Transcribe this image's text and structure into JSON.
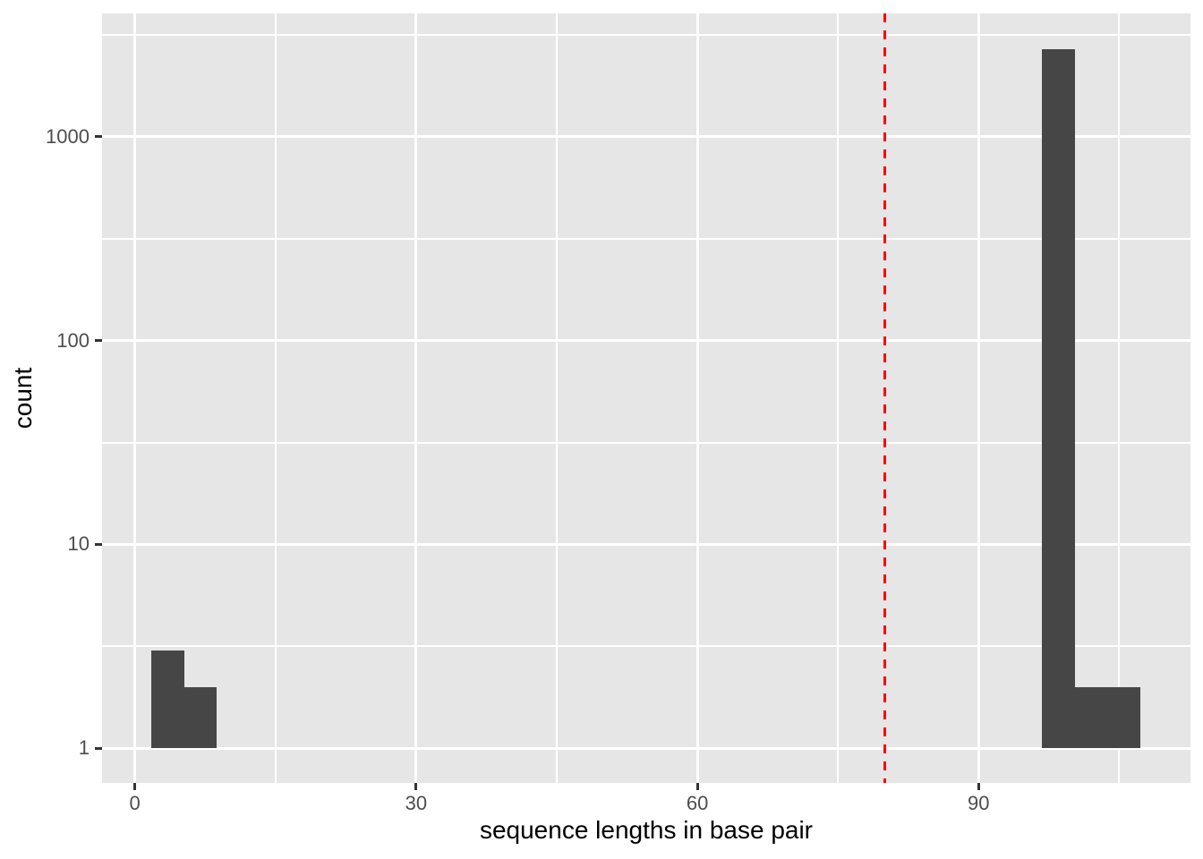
{
  "figure": {
    "background": "#FFFFFF"
  },
  "chart_data": {
    "type": "bar",
    "subtype": "histogram",
    "title": "",
    "xlabel": "sequence lengths in base pair",
    "ylabel": "count",
    "x_domain": [
      -3.5,
      112.6
    ],
    "y_scale": "log10",
    "y_log_domain": [
      -0.171,
      3.606
    ],
    "x_axis": {
      "major_ticks": [
        0,
        30,
        60,
        90
      ],
      "tick_labels": [
        "0",
        "30",
        "60",
        "90"
      ],
      "minor_ticks": [
        15,
        45,
        75,
        105
      ]
    },
    "y_axis": {
      "major_ticks": [
        1,
        10,
        100,
        1000
      ],
      "tick_labels": [
        "1",
        "10",
        "100",
        "1000"
      ],
      "minor_ticks": [
        3.1623,
        31.623,
        316.23,
        3162.3
      ]
    },
    "bins": [
      {
        "x0": 1.75,
        "x1": 5.25,
        "count": 3
      },
      {
        "x0": 5.25,
        "x1": 8.75,
        "count": 2
      },
      {
        "x0": 96.75,
        "x1": 100.25,
        "count": 2700
      },
      {
        "x0": 100.25,
        "x1": 103.75,
        "count": 2
      },
      {
        "x0": 103.75,
        "x1": 107.25,
        "count": 2
      }
    ],
    "bar_baseline_count": 1,
    "vline": {
      "x": 80,
      "color": "#FF0000",
      "style": "dashed"
    },
    "grid": true,
    "legend": false,
    "colors": {
      "bar_fill": "#464646",
      "panel_bg": "#E6E6E6",
      "grid": "#FFFFFF",
      "tick_text": "#4D4D4D",
      "axis_title": "#000000",
      "tick_mark": "#333333"
    }
  }
}
